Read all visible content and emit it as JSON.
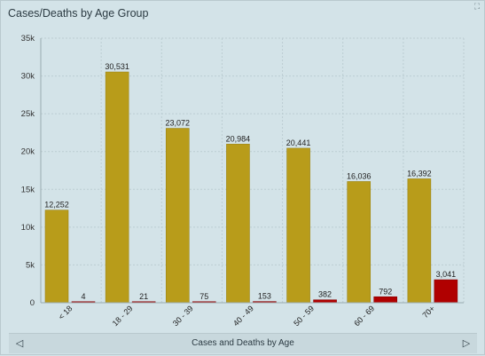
{
  "title": "Cases/Deaths by Age Group",
  "expand_icon": "expand-icon",
  "xlabel": "Cases and Deaths by Age",
  "nav": {
    "prev_icon": "chevron-left-icon",
    "next_icon": "chevron-right-icon"
  },
  "colors": {
    "cases": "#b89c1a",
    "deaths": "#b00000",
    "background": "#d3e3e8"
  },
  "chart_data": {
    "type": "bar",
    "title": "Cases/Deaths by Age Group",
    "xlabel": "Cases and Deaths by Age",
    "ylabel": "",
    "categories": [
      "< 18",
      "18 - 29",
      "30 - 39",
      "40 - 49",
      "50 - 59",
      "60 - 69",
      "70+"
    ],
    "series": [
      {
        "values": [
          12252,
          30531,
          23072,
          20984,
          20441,
          16036,
          16392
        ],
        "color": "#b89c1a"
      },
      {
        "values": [
          4,
          21,
          75,
          153,
          382,
          792,
          3041
        ],
        "color": "#b00000"
      }
    ],
    "value_labels": [
      [
        "12,252",
        "30,531",
        "23,072",
        "20,984",
        "20,441",
        "16,036",
        "16,392"
      ],
      [
        "4",
        "21",
        "75",
        "153",
        "382",
        "792",
        "3,041"
      ]
    ],
    "ylim": [
      0,
      35000
    ],
    "yticks": [
      0,
      5000,
      10000,
      15000,
      20000,
      25000,
      30000,
      35000
    ],
    "ytick_labels": [
      "0",
      "5k",
      "10k",
      "15k",
      "20k",
      "25k",
      "30k",
      "35k"
    ],
    "grid": true,
    "legend": "none"
  }
}
